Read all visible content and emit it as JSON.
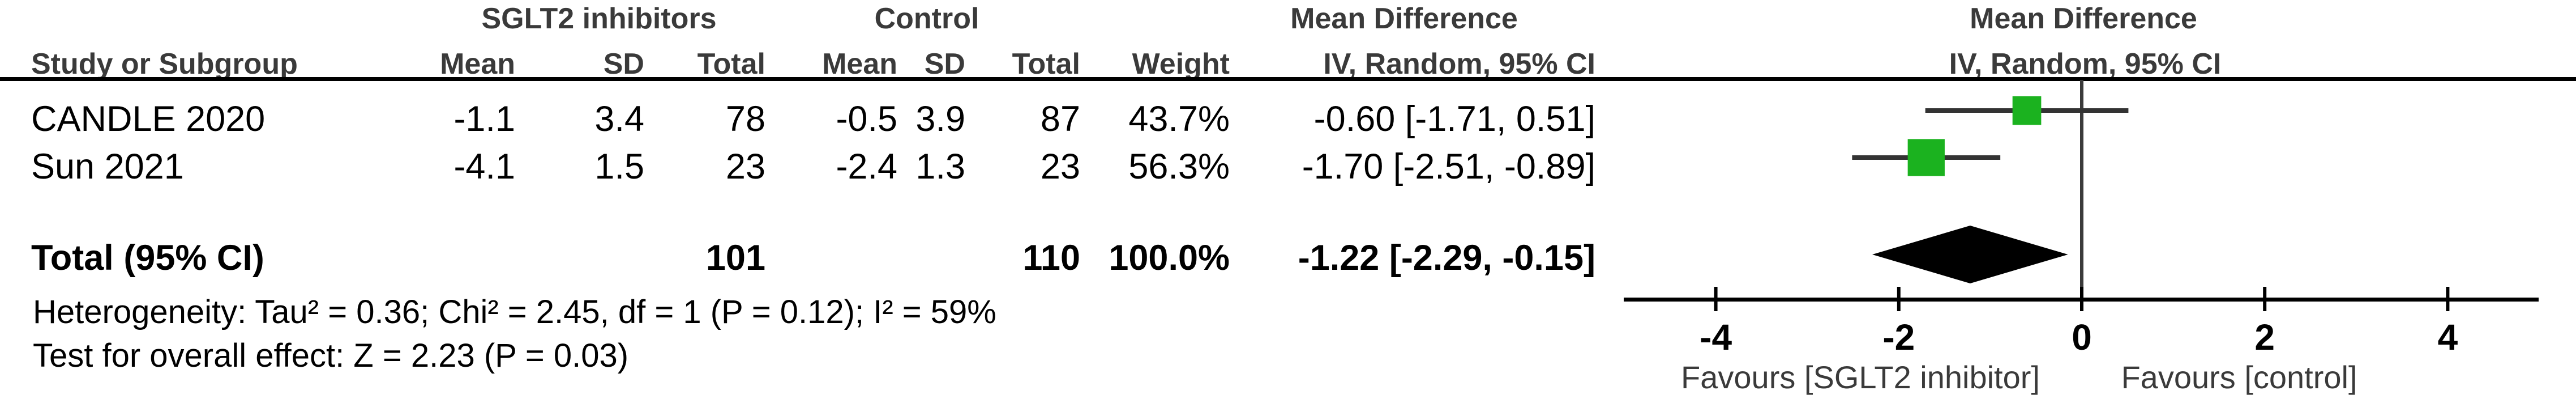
{
  "header": {
    "group_treatment": "SGLT2 inhibitors",
    "group_control": "Control",
    "md_title": "Mean Difference",
    "md_subtitle": "IV, Random, 95% CI",
    "plot_title": "Mean Difference",
    "plot_subtitle": "IV, Random, 95% CI",
    "study_col": "Study or Subgroup",
    "mean_col_t": "Mean",
    "sd_col_t": "SD",
    "total_col_t": "Total",
    "mean_col_c": "Mean",
    "sd_col_c": "SD",
    "total_col_c": "Total",
    "weight_col": "Weight"
  },
  "rows": [
    {
      "study": "CANDLE 2020",
      "t_mean": "-1.1",
      "t_sd": "3.4",
      "t_total": "78",
      "c_mean": "-0.5",
      "c_sd": "3.9",
      "c_total": "87",
      "weight": "43.7%",
      "md_text": "-0.60 [-1.71, 0.51]"
    },
    {
      "study": "Sun 2021",
      "t_mean": "-4.1",
      "t_sd": "1.5",
      "t_total": "23",
      "c_mean": "-2.4",
      "c_sd": "1.3",
      "c_total": "23",
      "weight": "56.3%",
      "md_text": "-1.70 [-2.51, -0.89]"
    }
  ],
  "total_row": {
    "label": "Total (95% CI)",
    "t_total": "101",
    "c_total": "110",
    "weight": "100.0%",
    "md_text": "-1.22 [-2.29, -0.15]"
  },
  "footnotes": {
    "heterogeneity": "Heterogeneity: Tau² = 0.36; Chi² = 2.45, df = 1 (P = 0.12); I² = 59%",
    "overall_effect": "Test for overall effect: Z = 2.23 (P = 0.03)"
  },
  "chart_data": {
    "type": "forest",
    "effect_measure": "Mean Difference, IV, Random, 95% CI",
    "studies": [
      {
        "name": "CANDLE 2020",
        "mean_t": -1.1,
        "sd_t": 3.4,
        "n_t": 78,
        "mean_c": -0.5,
        "sd_c": 3.9,
        "n_c": 87,
        "weight_pct": 43.7,
        "md": -0.6,
        "ci_low": -1.71,
        "ci_high": 0.51
      },
      {
        "name": "Sun 2021",
        "mean_t": -4.1,
        "sd_t": 1.5,
        "n_t": 23,
        "mean_c": -2.4,
        "sd_c": 1.3,
        "n_c": 23,
        "weight_pct": 56.3,
        "md": -1.7,
        "ci_low": -2.51,
        "ci_high": -0.89
      }
    ],
    "total": {
      "n_t": 101,
      "n_c": 110,
      "weight_pct": 100.0,
      "md": -1.22,
      "ci_low": -2.29,
      "ci_high": -0.15
    },
    "heterogeneity": {
      "tau2": 0.36,
      "chi2": 2.45,
      "df": 1,
      "p": 0.12,
      "i2_pct": 59
    },
    "overall_effect": {
      "z": 2.23,
      "p": 0.03
    },
    "axis": {
      "xmin": -5,
      "xmax": 5,
      "ticks": [
        -4,
        -2,
        0,
        2,
        4
      ],
      "zero_line": 0
    },
    "favours_left": "Favours [SGLT2 inhibitor]",
    "favours_right": "Favours [control]",
    "colors": {
      "marker": "#1bb21f",
      "diamond": "#000000",
      "ci_line": "#333333",
      "axis": "#000000",
      "zero_line": "#3b3b3b"
    }
  }
}
